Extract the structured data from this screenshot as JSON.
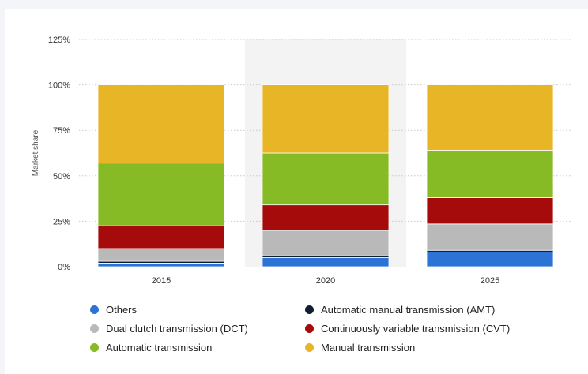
{
  "chart_data": {
    "type": "bar",
    "stacked": true,
    "categories": [
      "2015",
      "2020",
      "2025"
    ],
    "highlighted_category": "2020",
    "ylabel": "Market share",
    "ylim": [
      0,
      125
    ],
    "yticks": [
      0,
      25,
      50,
      75,
      100,
      125
    ],
    "ytick_suffix": "%",
    "grid": true,
    "legend_position": "bottom",
    "series": [
      {
        "name": "Others",
        "color": "#2b74d6",
        "values": [
          2,
          5,
          8
        ]
      },
      {
        "name": "Automatic manual transmission (AMT)",
        "color": "#0f1e33",
        "values": [
          1,
          1,
          1
        ]
      },
      {
        "name": "Dual clutch transmission (DCT)",
        "color": "#b9b9b9",
        "values": [
          7,
          14,
          14.5
        ]
      },
      {
        "name": "Continuously variable transmission (CVT)",
        "color": "#a50b0b",
        "values": [
          12.5,
          14,
          14.5
        ]
      },
      {
        "name": "Automatic transmission",
        "color": "#86bb26",
        "values": [
          34.5,
          28.5,
          26
        ]
      },
      {
        "name": "Manual transmission",
        "color": "#e8b526",
        "values": [
          43,
          37.5,
          36
        ]
      }
    ]
  }
}
